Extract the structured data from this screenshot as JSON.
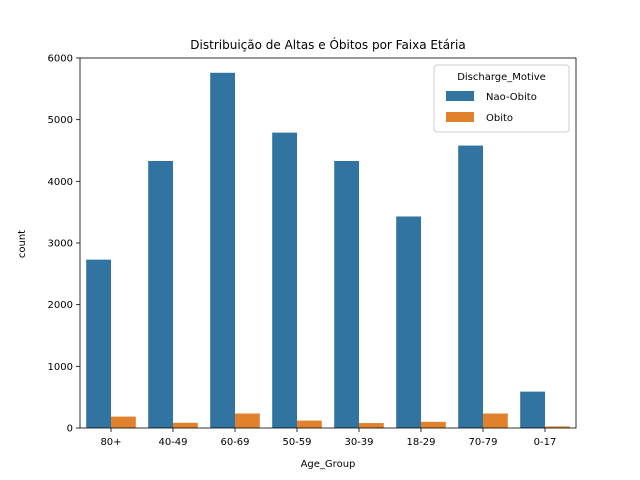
{
  "chart_data": {
    "type": "bar",
    "title": "Distribuição de Altas e Óbitos por Faixa Etária",
    "xlabel": "Age_Group",
    "ylabel": "count",
    "ylim": [
      0,
      6000
    ],
    "yticks": [
      0,
      1000,
      2000,
      3000,
      4000,
      5000,
      6000
    ],
    "categories": [
      "80+",
      "40-49",
      "60-69",
      "50-59",
      "30-39",
      "18-29",
      "70-79",
      "0-17"
    ],
    "legend": {
      "title": "Discharge_Motive",
      "placement": "top-right"
    },
    "grid": false,
    "series": [
      {
        "name": "Nao-Obito",
        "color": "#3274a1",
        "values": [
          2730,
          4330,
          5760,
          4790,
          4330,
          3430,
          4580,
          590
        ]
      },
      {
        "name": "Obito",
        "color": "#e1812c",
        "values": [
          185,
          85,
          235,
          120,
          80,
          100,
          235,
          25
        ]
      }
    ]
  }
}
